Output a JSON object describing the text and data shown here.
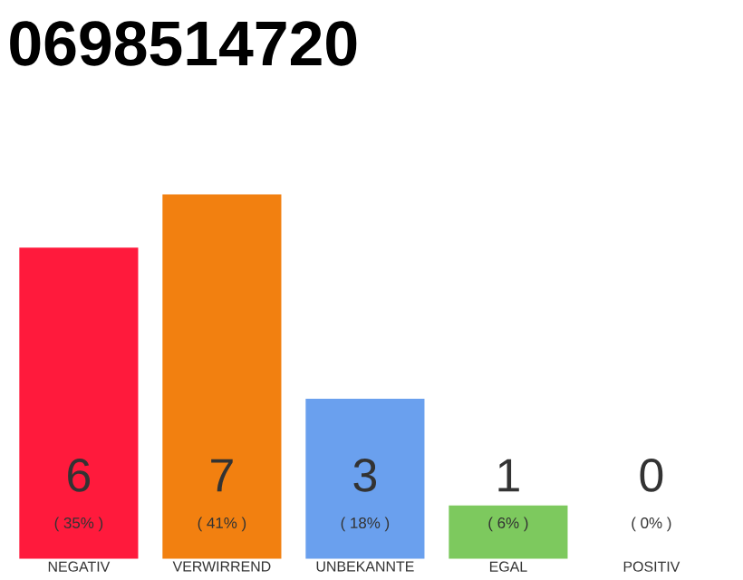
{
  "chart_data": {
    "type": "bar",
    "title": "0698514720",
    "categories": [
      "NEGATIV",
      "VERWIRREND",
      "UNBEKANNTE",
      "EGAL",
      "POSITIV"
    ],
    "values": [
      35,
      41,
      18,
      6,
      0
    ],
    "colors": [
      "#ff1a3c",
      "#f28010",
      "#6aa0ee",
      "#7dc95e",
      "#cccccc"
    ],
    "value_labels": [
      "( 35% )",
      "( 41% )",
      "( 18% )",
      "( 6% )",
      "( 0% )"
    ],
    "annotations": [
      "6",
      "7",
      "3",
      "1",
      "0"
    ],
    "tick_labels": "x"
  }
}
